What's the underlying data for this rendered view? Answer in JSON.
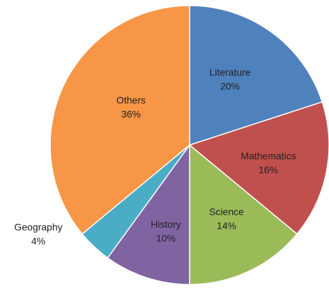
{
  "chart_data": {
    "type": "pie",
    "categories": [
      "Literature",
      "Mathematics",
      "Science",
      "History",
      "Geography",
      "Others"
    ],
    "values": [
      20,
      16,
      14,
      10,
      4,
      36
    ],
    "value_labels": [
      "20%",
      "16%",
      "14%",
      "10%",
      "4%",
      "36%"
    ],
    "colors": [
      "#4f81bd",
      "#c0504d",
      "#9bbb59",
      "#8064a2",
      "#4bacc6",
      "#f79646"
    ]
  }
}
